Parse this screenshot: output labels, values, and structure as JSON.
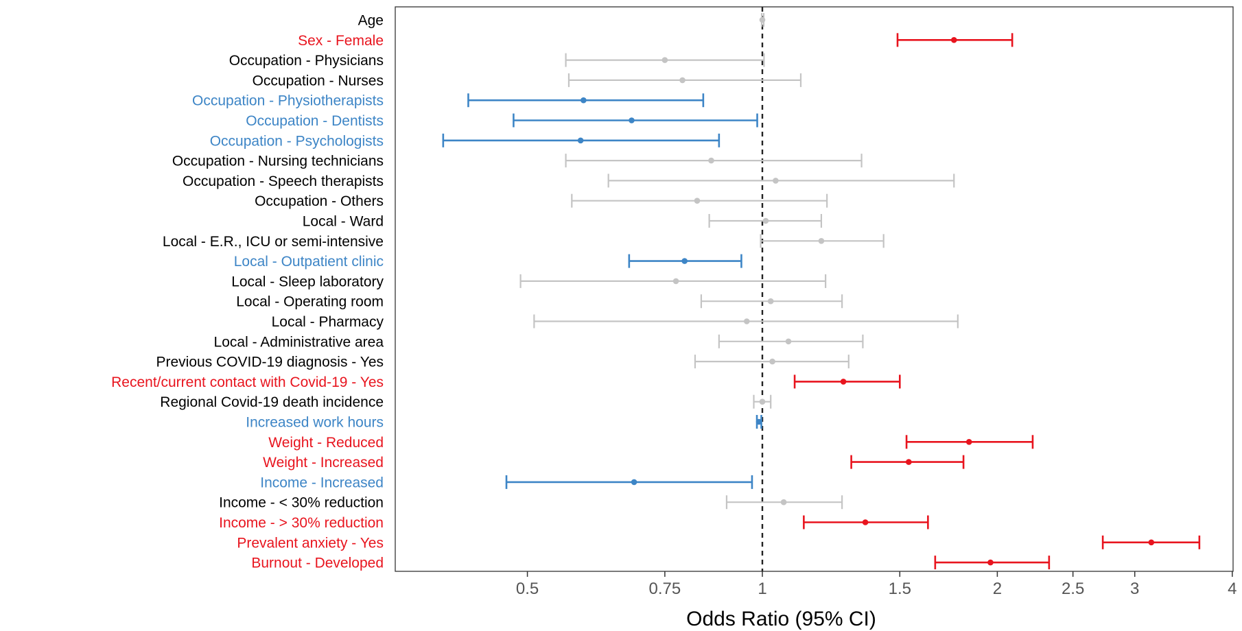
{
  "chart_data": {
    "type": "forest",
    "xlabel": "Odds Ratio (95% CI)",
    "x_scale": "log",
    "xlim": [
      0.29,
      4.1
    ],
    "x_ticks": [
      {
        "value": 0.5,
        "label": "0.5"
      },
      {
        "value": 0.75,
        "label": "0.75"
      },
      {
        "value": 1,
        "label": "1"
      },
      {
        "value": 1.5,
        "label": "1.5"
      },
      {
        "value": 2,
        "label": "2"
      },
      {
        "value": 2.5,
        "label": "2.5"
      },
      {
        "value": 3,
        "label": "3"
      },
      {
        "value": 4,
        "label": "4"
      }
    ],
    "reference_line": 1,
    "grid": false,
    "colors": {
      "significant_increase": "#e8141e",
      "significant_decrease": "#3d85c6",
      "not_significant": "#c4c4c4",
      "neutral_label": "#000000"
    },
    "rows": [
      {
        "label": "Age",
        "or": 1.0,
        "lo": 0.998,
        "hi": 1.004,
        "group": "ns"
      },
      {
        "label": "Sex - Female",
        "or": 1.76,
        "lo": 1.49,
        "hi": 2.09,
        "group": "up"
      },
      {
        "label": "Occupation - Physicians",
        "or": 0.75,
        "lo": 0.56,
        "hi": 1.005,
        "group": "ns"
      },
      {
        "label": "Occupation - Nurses",
        "or": 0.79,
        "lo": 0.565,
        "hi": 1.12,
        "group": "ns"
      },
      {
        "label": "Occupation - Physiotherapists",
        "or": 0.59,
        "lo": 0.42,
        "hi": 0.84,
        "group": "down"
      },
      {
        "label": "Occupation - Dentists",
        "or": 0.68,
        "lo": 0.48,
        "hi": 0.985,
        "group": "down"
      },
      {
        "label": "Occupation - Psychologists",
        "or": 0.585,
        "lo": 0.39,
        "hi": 0.88,
        "group": "down"
      },
      {
        "label": "Occupation - Nursing technicians",
        "or": 0.86,
        "lo": 0.56,
        "hi": 1.34,
        "group": "ns"
      },
      {
        "label": "Occupation - Speech therapists",
        "or": 1.04,
        "lo": 0.635,
        "hi": 1.76,
        "group": "ns"
      },
      {
        "label": "Occupation - Others",
        "or": 0.825,
        "lo": 0.57,
        "hi": 1.21,
        "group": "ns"
      },
      {
        "label": "Local - Ward",
        "or": 1.01,
        "lo": 0.855,
        "hi": 1.19,
        "group": "ns"
      },
      {
        "label": "Local - E.R., ICU or semi-intensive",
        "or": 1.19,
        "lo": 0.995,
        "hi": 1.43,
        "group": "ns"
      },
      {
        "label": "Local - Outpatient clinic",
        "or": 0.795,
        "lo": 0.675,
        "hi": 0.94,
        "group": "down"
      },
      {
        "label": "Local - Sleep laboratory",
        "or": 0.775,
        "lo": 0.49,
        "hi": 1.205,
        "group": "ns"
      },
      {
        "label": "Local - Operating room",
        "or": 1.025,
        "lo": 0.835,
        "hi": 1.265,
        "group": "ns"
      },
      {
        "label": "Local - Pharmacy",
        "or": 0.955,
        "lo": 0.51,
        "hi": 1.78,
        "group": "ns"
      },
      {
        "label": "Local - Administrative area",
        "or": 1.08,
        "lo": 0.88,
        "hi": 1.345,
        "group": "ns"
      },
      {
        "label": "Previous COVID-19 diagnosis - Yes",
        "or": 1.03,
        "lo": 0.82,
        "hi": 1.29,
        "group": "ns"
      },
      {
        "label": "Recent/current contact with Covid-19 - Yes",
        "or": 1.27,
        "lo": 1.1,
        "hi": 1.5,
        "group": "up"
      },
      {
        "label": "Regional Covid-19 death incidence",
        "or": 1.0,
        "lo": 0.975,
        "hi": 1.025,
        "group": "ns"
      },
      {
        "label": "Increased work hours",
        "or": 0.99,
        "lo": 0.984,
        "hi": 0.997,
        "group": "down"
      },
      {
        "label": "Weight - Reduced",
        "or": 1.84,
        "lo": 1.53,
        "hi": 2.22,
        "group": "up"
      },
      {
        "label": "Weight - Increased",
        "or": 1.54,
        "lo": 1.3,
        "hi": 1.81,
        "group": "up"
      },
      {
        "label": "Income - Increased",
        "or": 0.685,
        "lo": 0.47,
        "hi": 0.97,
        "group": "down"
      },
      {
        "label": "Income - < 30% reduction",
        "or": 1.065,
        "lo": 0.9,
        "hi": 1.265,
        "group": "ns"
      },
      {
        "label": "Income - > 30% reduction",
        "or": 1.355,
        "lo": 1.13,
        "hi": 1.63,
        "group": "up"
      },
      {
        "label": "Prevalent anxiety - Yes",
        "or": 3.15,
        "lo": 2.73,
        "hi": 3.63,
        "group": "up"
      },
      {
        "label": "Burnout - Developed",
        "or": 1.96,
        "lo": 1.665,
        "hi": 2.33,
        "group": "up"
      }
    ]
  }
}
